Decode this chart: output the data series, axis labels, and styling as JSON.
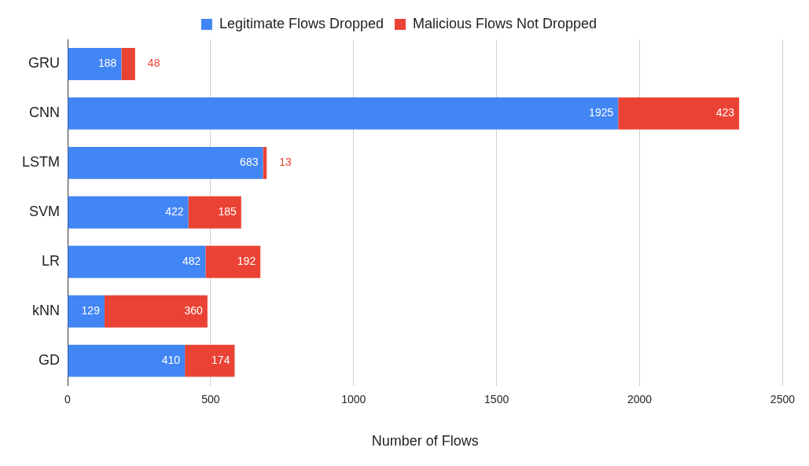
{
  "chart_data": {
    "type": "bar",
    "orientation": "horizontal",
    "stacked": true,
    "xlabel": "Number of Flows",
    "categories": [
      "GRU",
      "CNN",
      "LSTM",
      "SVM",
      "LR",
      "kNN",
      "GD"
    ],
    "series": [
      {
        "name": "Legitimate Flows Dropped",
        "color": "#4285f4",
        "values": [
          188,
          1925,
          683,
          422,
          482,
          129,
          410
        ]
      },
      {
        "name": "Malicious Flows Not Dropped",
        "color": "#ea4335",
        "values": [
          48,
          423,
          13,
          185,
          192,
          360,
          174
        ]
      }
    ],
    "xlim": [
      0,
      2500
    ],
    "xticks": [
      0,
      500,
      1000,
      1500,
      2000,
      2500
    ],
    "grid": "x",
    "legend": "top",
    "data_labels": true
  }
}
